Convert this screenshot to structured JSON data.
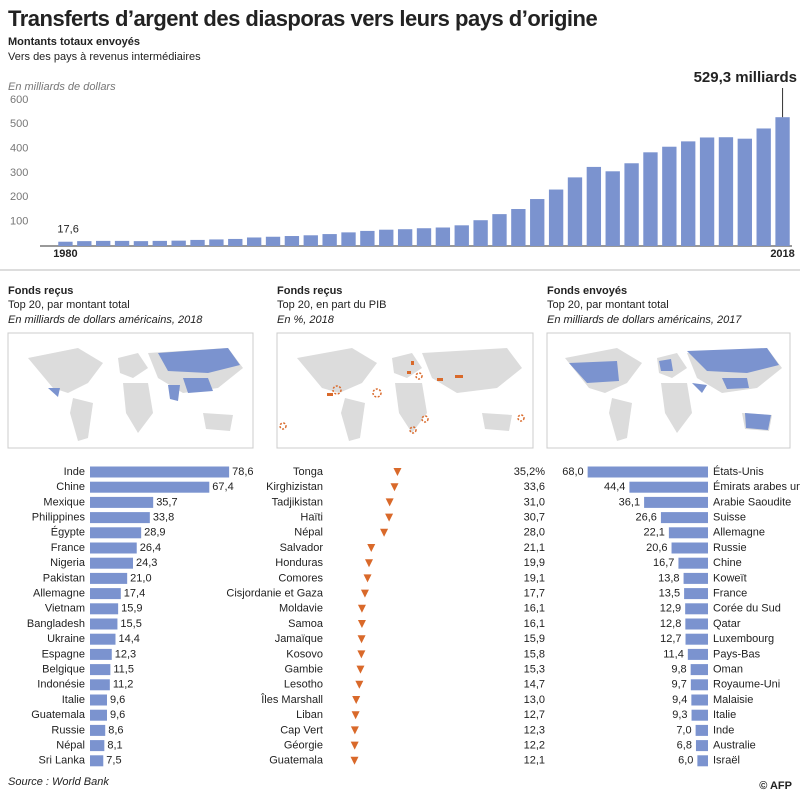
{
  "title": "Transferts d’argent des diasporas vers leurs pays d’origine",
  "source": "Source : World Bank",
  "credit": "© AFP",
  "chart_data": [
    {
      "type": "bar",
      "title": "Montants totaux envoyés",
      "subtitle": "Vers des pays à revenus intermédiaires",
      "y_label": "En milliards de dollars",
      "color": "#7b93cf",
      "categories": [
        "1980",
        null,
        null,
        null,
        null,
        null,
        null,
        null,
        null,
        null,
        null,
        null,
        null,
        null,
        null,
        null,
        null,
        null,
        null,
        null,
        null,
        null,
        null,
        null,
        null,
        null,
        null,
        null,
        null,
        null,
        null,
        null,
        null,
        null,
        null,
        null,
        null,
        null,
        "2018"
      ],
      "values": [
        17.6,
        20,
        21,
        21,
        20,
        21,
        22,
        25,
        27,
        29,
        35,
        38,
        41,
        44,
        49,
        56,
        62,
        67,
        69,
        73,
        76,
        85,
        106,
        131,
        152,
        193,
        232,
        282,
        325,
        307,
        340,
        385,
        408,
        430,
        446,
        447,
        441,
        483,
        529.3
      ],
      "value_labels": [
        "17,6",
        null,
        null,
        null,
        null,
        null,
        null,
        null,
        null,
        null,
        null,
        null,
        null,
        null,
        null,
        null,
        null,
        null,
        null,
        null,
        null,
        null,
        null,
        null,
        null,
        null,
        null,
        null,
        null,
        null,
        null,
        null,
        null,
        null,
        null,
        null,
        null,
        null,
        "529,3 milliards"
      ],
      "ylim": [
        0,
        600
      ],
      "yticks": [
        100,
        200,
        300,
        400,
        500,
        600
      ],
      "grid": false
    },
    {
      "type": "barh",
      "title": "Fonds reçus",
      "subtitle": "Top 20, par montant total",
      "note": "En milliards de dollars américains, 2018",
      "color": "#7b93cf",
      "reversed": false,
      "categories": [
        "Inde",
        "Chine",
        "Mexique",
        "Philippines",
        "Égypte",
        "France",
        "Nigeria",
        "Pakistan",
        "Allemagne",
        "Vietnam",
        "Bangladesh",
        "Ukraine",
        "Espagne",
        "Belgique",
        "Indonésie",
        "Italie",
        "Guatemala",
        "Russie",
        "Népal",
        "Sri Lanka"
      ],
      "values": [
        78.6,
        67.4,
        35.7,
        33.8,
        28.9,
        26.4,
        24.3,
        21.0,
        17.4,
        15.9,
        15.5,
        14.4,
        12.3,
        11.5,
        11.2,
        9.6,
        9.6,
        8.6,
        8.1,
        7.5
      ],
      "value_labels": [
        "78,6",
        "67,4",
        "35,7",
        "33,8",
        "28,9",
        "26,4",
        "24,3",
        "21,0",
        "17,4",
        "15,9",
        "15,5",
        "14,4",
        "12,3",
        "11,5",
        "11,2",
        "9,6",
        "9,6",
        "8,6",
        "8,1",
        "7,5"
      ]
    },
    {
      "type": "marker",
      "title": "Fonds reçus",
      "subtitle": "Top 20, en part du PIB",
      "note": "En %, 2018",
      "color": "#d9692a",
      "categories": [
        "Tonga",
        "Kirghizistan",
        "Tadjikistan",
        "Haïti",
        "Népal",
        "Salvador",
        "Honduras",
        "Comores",
        "Cisjordanie et Gaza",
        "Moldavie",
        "Samoa",
        "Jamaïque",
        "Kosovo",
        "Gambie",
        "Lesotho",
        "Îles Marshall",
        "Liban",
        "Cap Vert",
        "Géorgie",
        "Guatemala"
      ],
      "values": [
        35.2,
        33.6,
        31.0,
        30.7,
        28.0,
        21.1,
        19.9,
        19.1,
        17.7,
        16.1,
        16.1,
        15.9,
        15.8,
        15.3,
        14.7,
        13.0,
        12.7,
        12.3,
        12.2,
        12.1
      ],
      "value_labels": [
        "35,2%",
        "33,6",
        "31,0",
        "30,7",
        "28,0",
        "21,1",
        "19,9",
        "19,1",
        "17,7",
        "16,1",
        "16,1",
        "15,9",
        "15,8",
        "15,3",
        "14,7",
        "13,0",
        "12,7",
        "12,3",
        "12,2",
        "12,1"
      ]
    },
    {
      "type": "barh",
      "title": "Fonds envoyés",
      "subtitle": "Top 20, par montant total",
      "note": "En milliards de dollars américains, 2017",
      "color": "#7b93cf",
      "reversed": true,
      "categories": [
        "États-Unis",
        "Émirats arabes unis",
        "Arabie Saoudite",
        "Suisse",
        "Allemagne",
        "Russie",
        "Chine",
        "Koweït",
        "France",
        "Corée du Sud",
        "Qatar",
        "Luxembourg",
        "Pays-Bas",
        "Oman",
        "Royaume-Uni",
        "Malaisie",
        "Italie",
        "Inde",
        "Australie",
        "Israël"
      ],
      "values": [
        68.0,
        44.4,
        36.1,
        26.6,
        22.1,
        20.6,
        16.7,
        13.8,
        13.5,
        12.9,
        12.8,
        12.7,
        11.4,
        9.8,
        9.7,
        9.4,
        9.3,
        7.0,
        6.8,
        6.0
      ],
      "value_labels": [
        "68,0",
        "44,4",
        "36,1",
        "26,6",
        "22,1",
        "20,6",
        "16,7",
        "13,8",
        "13,5",
        "12,9",
        "12,8",
        "12,7",
        "11,4",
        "9,8",
        "9,7",
        "9,4",
        "9,3",
        "7,0",
        "6,8",
        "6,0"
      ]
    }
  ]
}
